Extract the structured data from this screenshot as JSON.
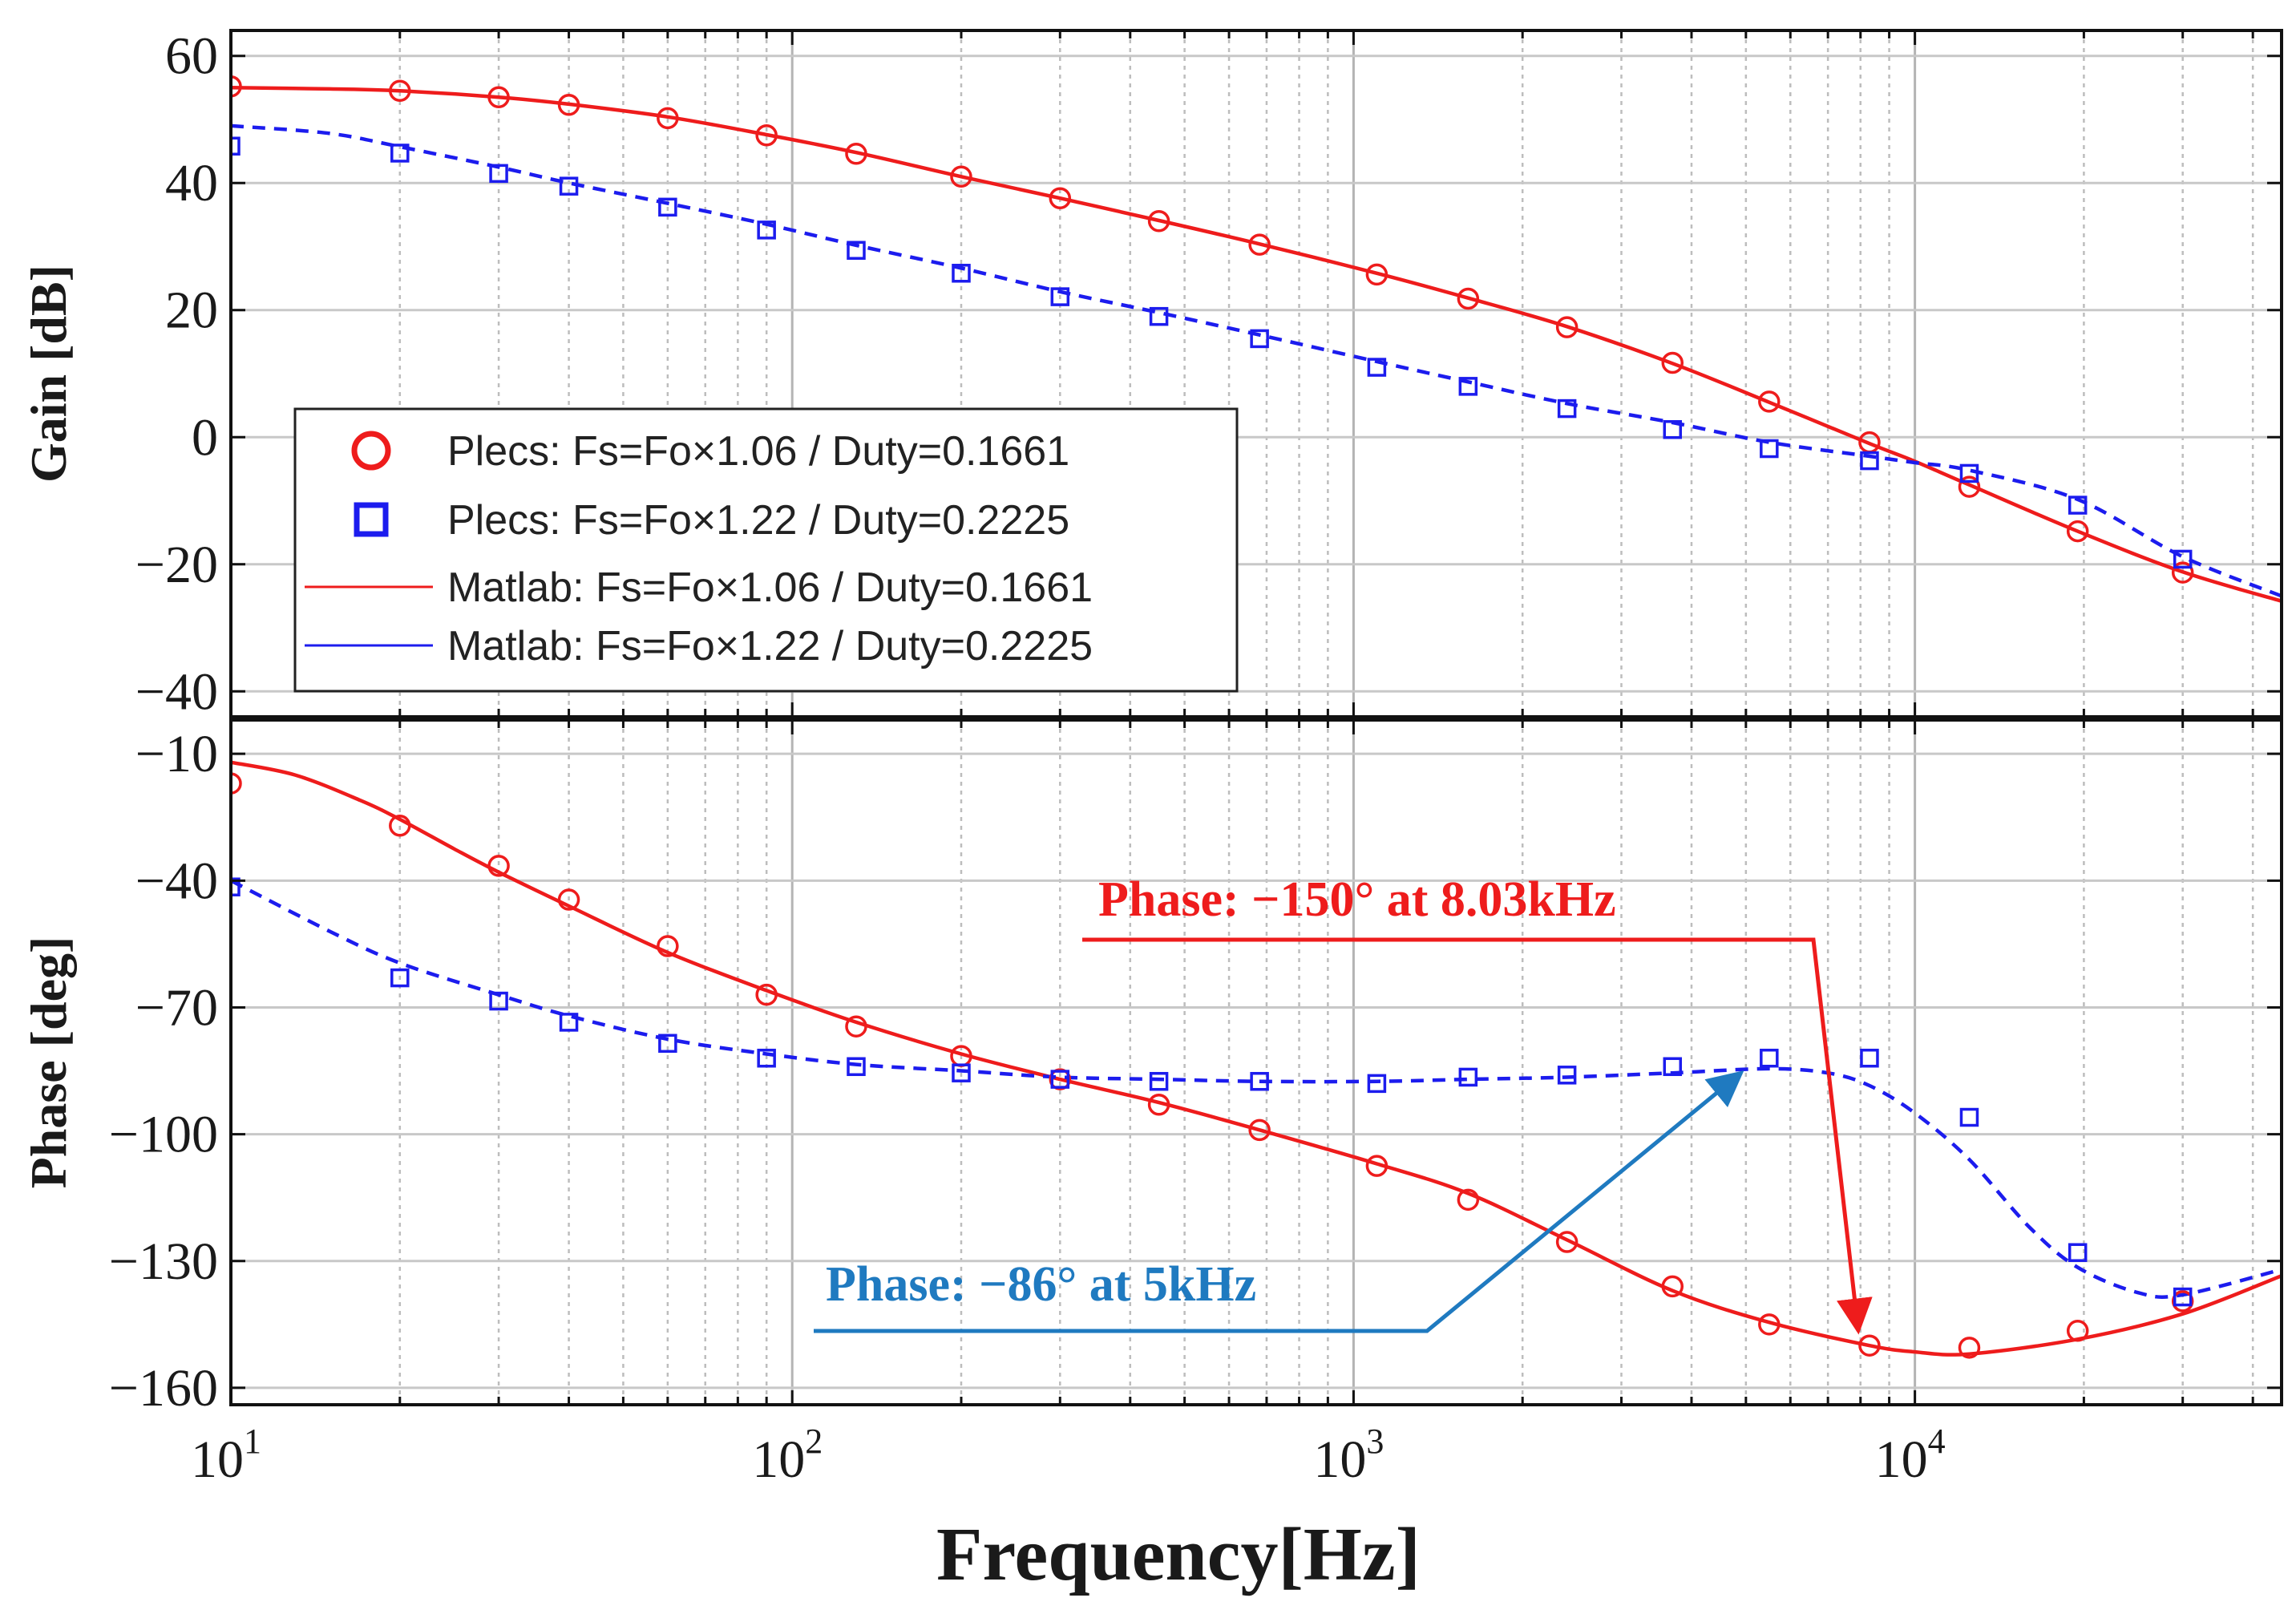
{
  "chart_data": {
    "type": "line",
    "scale_x": "log",
    "x_range": [
      10,
      45000
    ],
    "xlabel": "Frequency[Hz]",
    "x_ticks": [
      {
        "value": 10,
        "base": "10",
        "exp": "1"
      },
      {
        "value": 100,
        "base": "10",
        "exp": "2"
      },
      {
        "value": 1000,
        "base": "10",
        "exp": "3"
      },
      {
        "value": 10000,
        "base": "10",
        "exp": "4"
      }
    ],
    "grid": true,
    "colors": {
      "red": "#ee1c1c",
      "blue": "#1c1cee",
      "annotation_blue": "#1f7ac0",
      "grid": "#c8c8c8"
    },
    "legend": {
      "position": "left",
      "entries": [
        {
          "label": "Plecs: Fs=Fo×1.06 / Duty=0.1661",
          "marker": "circle",
          "color": "#ee1c1c"
        },
        {
          "label": "Plecs: Fs=Fo×1.22 / Duty=0.2225",
          "marker": "square",
          "color": "#1c1cee"
        },
        {
          "label": "Matlab: Fs=Fo×1.06 / Duty=0.1661",
          "marker": "solid-line",
          "color": "#ee1c1c"
        },
        {
          "label": "Matlab: Fs=Fo×1.22 / Duty=0.2225",
          "marker": "solid-line",
          "color": "#1c1cee"
        }
      ]
    },
    "panels": [
      {
        "name": "gain",
        "ylabel": "Gain [dB]",
        "ylim": [
          -44,
          64
        ],
        "yticks": [
          {
            "value": 60,
            "label": "60"
          },
          {
            "value": 40,
            "label": "40"
          },
          {
            "value": 20,
            "label": "20"
          },
          {
            "value": 0,
            "label": "0"
          },
          {
            "value": -20,
            "label": "−20"
          },
          {
            "value": -40,
            "label": "−40"
          }
        ],
        "series": [
          {
            "name": "Matlab: Fs=Fo×1.06 / Duty=0.1661",
            "style": "solid",
            "color": "#ee1c1c",
            "x": [
              10,
              15,
              20,
              30,
              40,
              60,
              90,
              130,
              200,
              300,
              450,
              680,
              1100,
              1600,
              2400,
              3700,
              5500,
              8300,
              10000,
              12500,
              19500,
              30000,
              45000
            ],
            "y": [
              55.0,
              54.8,
              54.5,
              53.5,
              52.4,
              50.4,
              47.6,
              44.8,
              41.0,
              37.6,
              34.1,
              30.4,
              25.8,
              21.9,
              17.4,
              11.6,
              5.5,
              -1.0,
              -3.8,
              -7.5,
              -14.8,
              -21.2,
              -25.8
            ]
          },
          {
            "name": "Matlab: Fs=Fo×1.22 / Duty=0.2225",
            "style": "dashed",
            "color": "#1c1cee",
            "x": [
              10,
              15,
              20,
              30,
              40,
              60,
              90,
              130,
              200,
              300,
              450,
              680,
              1100,
              1600,
              2400,
              3700,
              5500,
              8300,
              10000,
              12500,
              19500,
              30000,
              45000
            ],
            "y": [
              49.0,
              47.8,
              45.7,
              42.5,
              40.0,
              36.8,
              33.5,
              30.2,
              26.6,
              22.9,
              19.6,
              16.1,
              11.9,
              8.7,
              5.3,
              2.3,
              -0.8,
              -3.0,
              -4.0,
              -5.2,
              -9.8,
              -18.8,
              -25.0
            ]
          },
          {
            "name": "Plecs: Fs=Fo×1.06 / Duty=0.1661",
            "style": "circle",
            "color": "#ee1c1c",
            "x": [
              10,
              20,
              30,
              40,
              60,
              90,
              130,
              200,
              300,
              450,
              680,
              1100,
              1600,
              2400,
              3700,
              5500,
              8300,
              12500,
              19500,
              30000
            ],
            "y": [
              55.2,
              54.5,
              53.5,
              52.3,
              50.2,
              47.5,
              44.6,
              41.0,
              37.6,
              34.0,
              30.3,
              25.6,
              21.8,
              17.3,
              11.7,
              5.6,
              -0.8,
              -7.8,
              -14.8,
              -21.3
            ]
          },
          {
            "name": "Plecs: Fs=Fo×1.22 / Duty=0.2225",
            "style": "square",
            "color": "#1c1cee",
            "x": [
              10,
              20,
              30,
              40,
              60,
              90,
              130,
              200,
              300,
              450,
              680,
              1100,
              1600,
              2400,
              3700,
              5500,
              8300,
              12500,
              19500,
              30000
            ],
            "y": [
              45.8,
              44.7,
              41.5,
              39.5,
              36.2,
              32.6,
              29.4,
              25.8,
              22.1,
              19.0,
              15.5,
              11.0,
              8.0,
              4.5,
              1.2,
              -1.8,
              -3.7,
              -5.7,
              -10.7,
              -19.2
            ]
          }
        ]
      },
      {
        "name": "phase",
        "ylabel": "Phase [deg]",
        "ylim": [
          -164,
          -2
        ],
        "yticks": [
          {
            "value": -10,
            "label": "−10"
          },
          {
            "value": -40,
            "label": "−40"
          },
          {
            "value": -70,
            "label": "−70"
          },
          {
            "value": -100,
            "label": "−100"
          },
          {
            "value": -130,
            "label": "−130"
          },
          {
            "value": -160,
            "label": "−160"
          }
        ],
        "series": [
          {
            "name": "Matlab: Fs=Fo×1.06 / Duty=0.1661",
            "style": "solid",
            "color": "#ee1c1c",
            "x": [
              10,
              13,
              17,
              20,
              25,
              30,
              40,
              60,
              90,
              130,
              200,
              300,
              450,
              680,
              1100,
              1600,
              2400,
              3700,
              5500,
              8300,
              10000,
              12500,
              19500,
              30000,
              45000
            ],
            "y": [
              -12.0,
              -15.0,
              -21.0,
              -25.5,
              -32.5,
              -38.0,
              -46.0,
              -57.0,
              -66.0,
              -73.5,
              -81.0,
              -87.0,
              -92.5,
              -99.0,
              -107.0,
              -114.0,
              -125.0,
              -137.0,
              -144.5,
              -150.0,
              -151.5,
              -152.0,
              -148.5,
              -142.5,
              -133.5
            ]
          },
          {
            "name": "Matlab: Fs=Fo×1.22 / Duty=0.2225",
            "style": "dashed",
            "color": "#1c1cee",
            "x": [
              10,
              15,
              20,
              30,
              40,
              60,
              90,
              130,
              200,
              300,
              450,
              680,
              1100,
              1600,
              2400,
              3700,
              5500,
              7000,
              8300,
              10000,
              12500,
              16000,
              19500,
              25000,
              30000,
              45000
            ],
            "y": [
              -40.0,
              -52.0,
              -59.5,
              -67.0,
              -72.0,
              -77.5,
              -81.0,
              -83.5,
              -85.0,
              -86.5,
              -87.0,
              -87.5,
              -87.5,
              -87.0,
              -86.5,
              -85.5,
              -84.5,
              -85.5,
              -88.5,
              -95.0,
              -106.0,
              -122.0,
              -131.5,
              -137.5,
              -138.0,
              -132.0
            ]
          },
          {
            "name": "Plecs: Fs=Fo×1.06 / Duty=0.1661",
            "style": "circle",
            "color": "#ee1c1c",
            "x": [
              10,
              20,
              30,
              40,
              60,
              90,
              130,
              200,
              300,
              450,
              680,
              1100,
              1600,
              2400,
              3700,
              5500,
              8300,
              12500,
              19500,
              30000
            ],
            "y": [
              -17.0,
              -27.0,
              -36.5,
              -44.5,
              -55.5,
              -67.0,
              -74.5,
              -81.5,
              -87.0,
              -93.0,
              -99.0,
              -107.5,
              -115.5,
              -125.5,
              -136.0,
              -145.0,
              -150.0,
              -150.5,
              -146.5,
              -139.5
            ]
          },
          {
            "name": "Plecs: Fs=Fo×1.22 / Duty=0.2225",
            "style": "square",
            "color": "#1c1cee",
            "x": [
              10,
              20,
              30,
              40,
              60,
              90,
              130,
              200,
              300,
              450,
              680,
              1100,
              1600,
              2400,
              3700,
              5500,
              8300,
              12500,
              19500,
              30000
            ],
            "y": [
              -41.5,
              -63.0,
              -68.5,
              -73.5,
              -78.5,
              -82.0,
              -84.0,
              -85.5,
              -87.0,
              -87.5,
              -87.5,
              -88.0,
              -86.5,
              -86.0,
              -84.0,
              -82.0,
              -82.0,
              -96.0,
              -128.0,
              -138.5
            ]
          }
        ]
      }
    ],
    "annotations": [
      {
        "text": "Phase: −150° at 8.03kHz",
        "color": "#ee1c1c",
        "target": {
          "x": 8030,
          "y": -150
        }
      },
      {
        "text": "Phase: −86° at 5kHz",
        "color": "#1f7ac0",
        "target": {
          "x": 5000,
          "y": -86
        }
      }
    ]
  }
}
